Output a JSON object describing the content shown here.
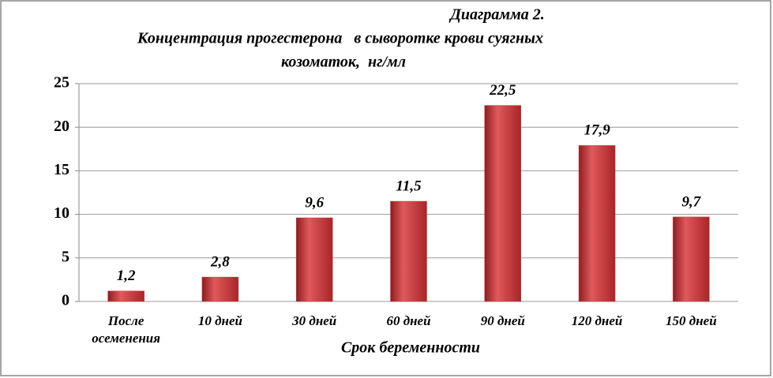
{
  "chart_data": {
    "type": "bar",
    "title": "Диаграмма  2.",
    "subtitle": [
      "Концентрация прогестерона   в сыворотке крови суягных",
      "козоматок,  нг/мл"
    ],
    "x_label": "Срок беременности",
    "categories": [
      "После осеменения",
      "10 дней",
      "30 дней",
      "60 дней",
      "90 дней",
      "120 дней",
      "150 дней"
    ],
    "values": [
      1.2,
      2.8,
      9.6,
      11.5,
      22.5,
      17.9,
      9.7
    ],
    "value_labels": [
      "1,2",
      "2,8",
      "9,6",
      "11,5",
      "22,5",
      "17,9",
      "9,7"
    ],
    "color": "#c43a3c",
    "ylim": [
      0,
      25
    ],
    "yticks": [
      0,
      5,
      10,
      15,
      20,
      25
    ],
    "grid": true
  }
}
